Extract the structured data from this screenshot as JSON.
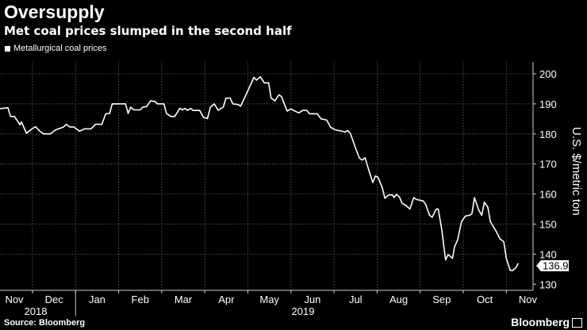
{
  "header": {
    "title": "Oversupply",
    "subtitle": "Met coal prices slumped in the second half"
  },
  "footer": {
    "source": "Source: Bloomberg",
    "brand": "Bloomberg"
  },
  "chart_data": {
    "type": "line",
    "title": "Oversupply",
    "subtitle": "Met coal prices slumped in the second half",
    "ylabel": "U.S. $/metric ton",
    "xlabel": "",
    "ylim": [
      130,
      200
    ],
    "yticks": [
      130,
      140,
      150,
      160,
      170,
      180,
      190,
      200
    ],
    "xlim_months_since_2018_11": [
      0,
      12.4
    ],
    "month_labels": [
      "Nov",
      "Dec",
      "Jan",
      "Feb",
      "Mar",
      "Apr",
      "May",
      "Jun",
      "Jul",
      "Aug",
      "Sep",
      "Oct",
      "Nov"
    ],
    "year_labels": [
      "2018",
      "2019"
    ],
    "grid": true,
    "legend": {
      "position": "top-left",
      "entries": [
        "Metallurgical coal prices"
      ]
    },
    "last_value_label": "136.96",
    "line_color": "#ffffff",
    "series": [
      {
        "name": "Metallurgical coal prices",
        "x_unit": "months since 2018-11-01",
        "points": [
          [
            0.24,
            188.4
          ],
          [
            0.43,
            188.7
          ],
          [
            0.49,
            185.8
          ],
          [
            0.58,
            185.8
          ],
          [
            0.71,
            183
          ],
          [
            0.74,
            184
          ],
          [
            0.86,
            180.2
          ],
          [
            0.98,
            181.6
          ],
          [
            1.07,
            182.4
          ],
          [
            1.17,
            180.9
          ],
          [
            1.26,
            180
          ],
          [
            1.41,
            180
          ],
          [
            1.53,
            181.3
          ],
          [
            1.72,
            182.3
          ],
          [
            1.78,
            183.2
          ],
          [
            1.87,
            182.3
          ],
          [
            1.96,
            182.3
          ],
          [
            2.09,
            180.9
          ],
          [
            2.21,
            181.7
          ],
          [
            2.36,
            181.7
          ],
          [
            2.46,
            183.2
          ],
          [
            2.61,
            183.2
          ],
          [
            2.7,
            186.7
          ],
          [
            2.79,
            186.8
          ],
          [
            2.85,
            190
          ],
          [
            3.16,
            190
          ],
          [
            3.22,
            186.8
          ],
          [
            3.28,
            188.9
          ],
          [
            3.35,
            188
          ],
          [
            3.5,
            188
          ],
          [
            3.56,
            188.9
          ],
          [
            3.65,
            189.1
          ],
          [
            3.74,
            191
          ],
          [
            3.84,
            190.8
          ],
          [
            3.9,
            190
          ],
          [
            4.05,
            190
          ],
          [
            4.11,
            186.8
          ],
          [
            4.21,
            185.8
          ],
          [
            4.3,
            185.8
          ],
          [
            4.42,
            188.5
          ],
          [
            4.48,
            188
          ],
          [
            4.54,
            188.5
          ],
          [
            4.6,
            187.8
          ],
          [
            4.67,
            188.5
          ],
          [
            4.73,
            187.8
          ],
          [
            4.88,
            187.8
          ],
          [
            4.97,
            185.5
          ],
          [
            5.06,
            185.1
          ],
          [
            5.13,
            188.9
          ],
          [
            5.22,
            190
          ],
          [
            5.31,
            187.9
          ],
          [
            5.43,
            188.9
          ],
          [
            5.49,
            191.9
          ],
          [
            5.59,
            191.9
          ],
          [
            5.65,
            190
          ],
          [
            5.77,
            189.8
          ],
          [
            5.83,
            189.2
          ],
          [
            5.99,
            194.1
          ],
          [
            6.14,
            198.8
          ],
          [
            6.2,
            197.9
          ],
          [
            6.29,
            199
          ],
          [
            6.38,
            197
          ],
          [
            6.48,
            197
          ],
          [
            6.54,
            191.9
          ],
          [
            6.63,
            191
          ],
          [
            6.72,
            193
          ],
          [
            6.78,
            192.4
          ],
          [
            6.91,
            187.6
          ],
          [
            7.0,
            188.3
          ],
          [
            7.06,
            187.8
          ],
          [
            7.18,
            187
          ],
          [
            7.27,
            187.8
          ],
          [
            7.37,
            187.8
          ],
          [
            7.43,
            186.7
          ],
          [
            7.61,
            186.7
          ],
          [
            7.7,
            185
          ],
          [
            7.83,
            184.6
          ],
          [
            7.92,
            182.2
          ],
          [
            8.04,
            181.3
          ],
          [
            8.16,
            181
          ],
          [
            8.26,
            180.6
          ],
          [
            8.32,
            181.1
          ],
          [
            8.38,
            180.2
          ],
          [
            8.5,
            175.2
          ],
          [
            8.59,
            171.9
          ],
          [
            8.66,
            171.3
          ],
          [
            8.72,
            172.1
          ],
          [
            8.81,
            167.8
          ],
          [
            8.9,
            163.8
          ],
          [
            8.96,
            166
          ],
          [
            9.02,
            165.6
          ],
          [
            9.12,
            162.1
          ],
          [
            9.18,
            158.6
          ],
          [
            9.27,
            159.7
          ],
          [
            9.36,
            159.7
          ],
          [
            9.39,
            158.8
          ],
          [
            9.45,
            159.9
          ],
          [
            9.52,
            159
          ],
          [
            9.58,
            156.9
          ],
          [
            9.67,
            156.2
          ],
          [
            9.76,
            155
          ],
          [
            9.85,
            158.8
          ],
          [
            9.91,
            158.2
          ],
          [
            10.07,
            157.7
          ],
          [
            10.13,
            156.4
          ],
          [
            10.22,
            152.9
          ],
          [
            10.28,
            152.3
          ],
          [
            10.37,
            155
          ],
          [
            10.42,
            155
          ],
          [
            10.5,
            148.2
          ],
          [
            10.59,
            138.1
          ],
          [
            10.65,
            139.9
          ],
          [
            10.75,
            138.6
          ],
          [
            10.8,
            142.5
          ],
          [
            10.87,
            144.7
          ],
          [
            10.96,
            150.8
          ],
          [
            11.05,
            152.7
          ],
          [
            11.14,
            152.9
          ],
          [
            11.2,
            153.4
          ],
          [
            11.26,
            158.8
          ],
          [
            11.36,
            154.7
          ],
          [
            11.43,
            152.9
          ],
          [
            11.49,
            157.3
          ],
          [
            11.57,
            155.6
          ],
          [
            11.63,
            150.8
          ],
          [
            11.76,
            147.7
          ],
          [
            11.85,
            145.1
          ],
          [
            11.94,
            144.2
          ],
          [
            12.0,
            138.6
          ],
          [
            12.09,
            134.6
          ],
          [
            12.15,
            134.6
          ],
          [
            12.22,
            135.5
          ],
          [
            12.28,
            136.96
          ]
        ]
      }
    ]
  }
}
